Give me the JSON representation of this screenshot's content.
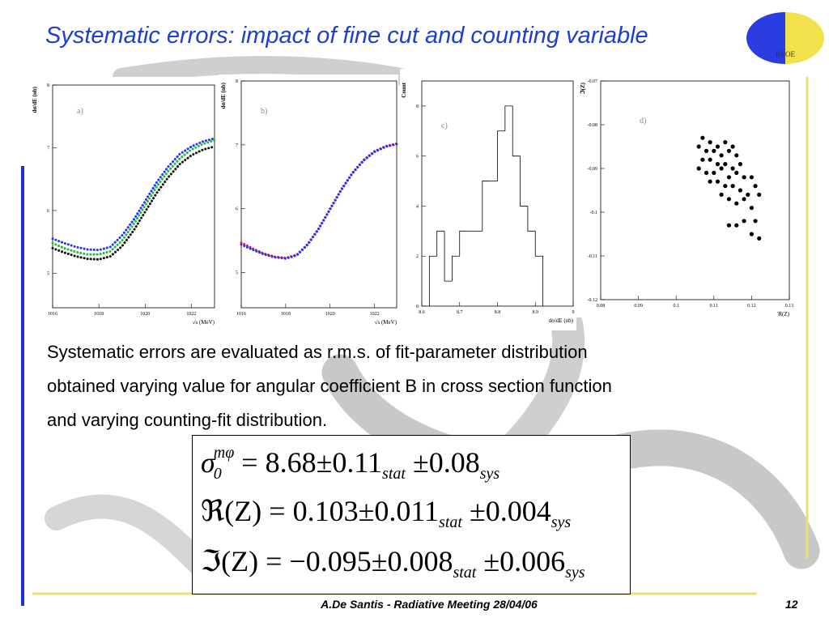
{
  "title": "Systematic errors: impact of fine cut and counting variable",
  "logo": "KLOE",
  "panels": [
    {
      "type": "line",
      "label": "a)",
      "ylabel": "dσ/dE (nb)",
      "xlabel": "√s (MeV)",
      "xlim": [
        1016,
        1023
      ],
      "ylim": [
        4.45,
        8
      ],
      "xticks": [
        1016,
        1018,
        1020,
        1022
      ],
      "yticks": [
        5,
        6,
        7,
        8
      ],
      "x": [
        1016,
        1016.5,
        1017,
        1017.5,
        1018,
        1018.5,
        1019,
        1019.5,
        1020,
        1020.5,
        1021,
        1021.5,
        1022,
        1022.5,
        1023
      ],
      "series": [
        {
          "color": "#2233ff",
          "values": [
            5.55,
            5.48,
            5.42,
            5.38,
            5.37,
            5.42,
            5.6,
            5.85,
            6.15,
            6.45,
            6.7,
            6.9,
            7.02,
            7.1,
            7.15
          ]
        },
        {
          "color": "#22bb33",
          "values": [
            5.48,
            5.4,
            5.34,
            5.3,
            5.3,
            5.35,
            5.52,
            5.78,
            6.08,
            6.38,
            6.63,
            6.83,
            6.97,
            7.06,
            7.12
          ]
        },
        {
          "color": "#111111",
          "values": [
            5.4,
            5.33,
            5.27,
            5.23,
            5.22,
            5.27,
            5.43,
            5.68,
            5.98,
            6.28,
            6.53,
            6.74,
            6.88,
            6.97,
            7.02
          ]
        }
      ]
    },
    {
      "type": "line",
      "label": "b)",
      "ylabel": "dσ/dE (nb)",
      "xlabel": "√s (MeV)",
      "xlim": [
        1016,
        1023
      ],
      "ylim": [
        4.45,
        8
      ],
      "xticks": [
        1016,
        1018,
        1020,
        1022
      ],
      "yticks": [
        5,
        6,
        7,
        8
      ],
      "x": [
        1016,
        1016.5,
        1017,
        1017.5,
        1018,
        1018.5,
        1019,
        1019.5,
        1020,
        1020.5,
        1021,
        1021.5,
        1022,
        1022.5,
        1023
      ],
      "series": [
        {
          "color": "#dd2222",
          "values": [
            5.47,
            5.38,
            5.3,
            5.25,
            5.23,
            5.28,
            5.45,
            5.7,
            6.0,
            6.3,
            6.56,
            6.76,
            6.9,
            6.98,
            7.02
          ]
        },
        {
          "color": "#2233ff",
          "values": [
            5.44,
            5.36,
            5.29,
            5.24,
            5.22,
            5.27,
            5.44,
            5.69,
            5.99,
            6.29,
            6.55,
            6.75,
            6.89,
            6.97,
            7.01
          ]
        }
      ]
    },
    {
      "type": "histogram",
      "label": "c)",
      "ylabel": "Count",
      "xlabel": "dσ/dE (nb)",
      "xlim": [
        8.6,
        9
      ],
      "ylim": [
        0,
        9
      ],
      "xticks": [
        8.6,
        8.7,
        8.8,
        8.9,
        9
      ],
      "yticks": [
        0,
        2,
        4,
        6,
        8
      ],
      "bins": [
        8.62,
        8.64,
        8.66,
        8.68,
        8.7,
        8.72,
        8.74,
        8.76,
        8.78,
        8.8,
        8.82,
        8.84,
        8.86,
        8.88,
        8.9,
        8.92
      ],
      "values": [
        2,
        3,
        1,
        2,
        3,
        3,
        3,
        5,
        5,
        7,
        8,
        6,
        4,
        3,
        2
      ]
    },
    {
      "type": "scatter",
      "label": "d)",
      "ylabel": "ℑ(Z)",
      "xlabel": "ℜ(Z)",
      "xlim": [
        0.08,
        0.13
      ],
      "ylim": [
        -0.12,
        -0.07
      ],
      "xticks": [
        0.08,
        0.09,
        0.1,
        0.11,
        0.12,
        0.13
      ],
      "yticks": [
        -0.12,
        -0.11,
        -0.1,
        -0.09,
        -0.08,
        -0.07
      ],
      "x": [
        0.107,
        0.109,
        0.111,
        0.113,
        0.115,
        0.106,
        0.108,
        0.11,
        0.112,
        0.114,
        0.116,
        0.107,
        0.109,
        0.111,
        0.113,
        0.115,
        0.117,
        0.106,
        0.108,
        0.11,
        0.112,
        0.114,
        0.116,
        0.118,
        0.12,
        0.109,
        0.111,
        0.113,
        0.115,
        0.117,
        0.119,
        0.121,
        0.112,
        0.114,
        0.116,
        0.118,
        0.12,
        0.122,
        0.114,
        0.116,
        0.118,
        0.121,
        0.122,
        0.12
      ],
      "values": [
        -0.083,
        -0.084,
        -0.085,
        -0.084,
        -0.085,
        -0.085,
        -0.086,
        -0.086,
        -0.087,
        -0.086,
        -0.087,
        -0.088,
        -0.088,
        -0.089,
        -0.089,
        -0.09,
        -0.089,
        -0.09,
        -0.091,
        -0.091,
        -0.09,
        -0.092,
        -0.091,
        -0.092,
        -0.092,
        -0.093,
        -0.093,
        -0.094,
        -0.094,
        -0.095,
        -0.096,
        -0.094,
        -0.096,
        -0.097,
        -0.098,
        -0.097,
        -0.099,
        -0.096,
        -0.103,
        -0.103,
        -0.102,
        -0.102,
        -0.106,
        -0.105
      ]
    }
  ],
  "body": [
    "Systematic errors are evaluated as r.m.s. of fit-parameter distribution",
    "obtained varying value for angular coefficient B in cross section function",
    "and varying counting-fit distribution."
  ],
  "equations": [
    {
      "lhs": "σ",
      "lhs_sub": "0",
      "lhs_sup": "mφ",
      "rel": "=",
      "value": "8.68",
      "pm1": "±",
      "stat": "0.11",
      "stat_label": "stat",
      "pm2": "±",
      "sys": "0.08",
      "sys_label": "sys"
    },
    {
      "lhs": "ℜ(Z)",
      "rel": "=",
      "value": "0.103",
      "pm1": "±",
      "stat": "0.011",
      "stat_label": "stat",
      "pm2": "±",
      "sys": "0.004",
      "sys_label": "sys"
    },
    {
      "lhs": "ℑ(Z)",
      "rel": "=",
      "value": "−0.095",
      "pm1": "±",
      "stat": "0.008",
      "stat_label": "stat",
      "pm2": "±",
      "sys": "0.006",
      "sys_label": "sys"
    }
  ],
  "footer": "A.De Santis - Radiative Meeting 28/04/06",
  "page": "12"
}
